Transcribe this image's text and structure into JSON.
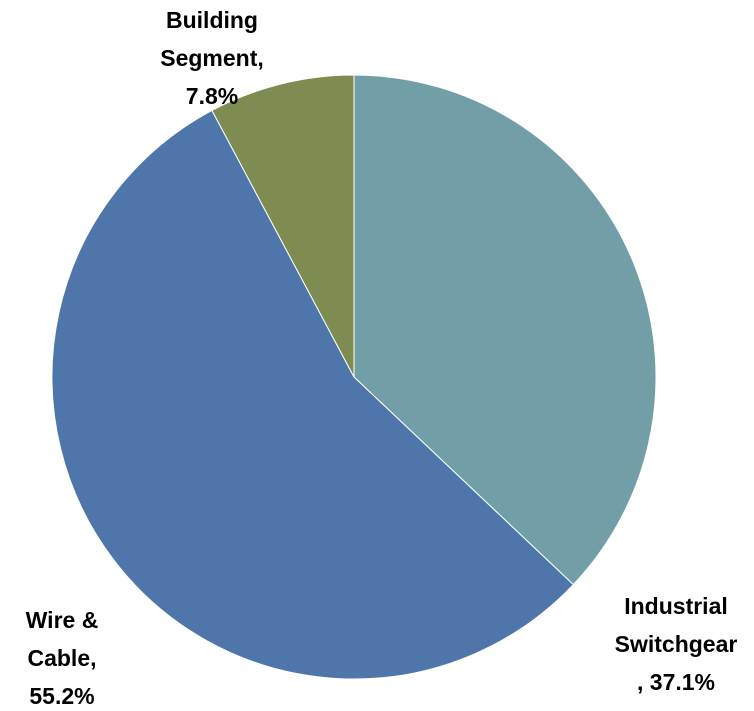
{
  "chart_data": {
    "type": "pie",
    "values": [
      37.1,
      55.2,
      7.8
    ],
    "value_labels": [
      [
        "Industrial",
        "Switchgear",
        ", 37.1%"
      ],
      [
        "Wire &",
        "Cable,",
        "55.2%"
      ],
      [
        "Building",
        "Segment,",
        "7.8%"
      ]
    ],
    "colors": [
      "#729fa7",
      "#4f76aa",
      "#7f8c51"
    ]
  }
}
